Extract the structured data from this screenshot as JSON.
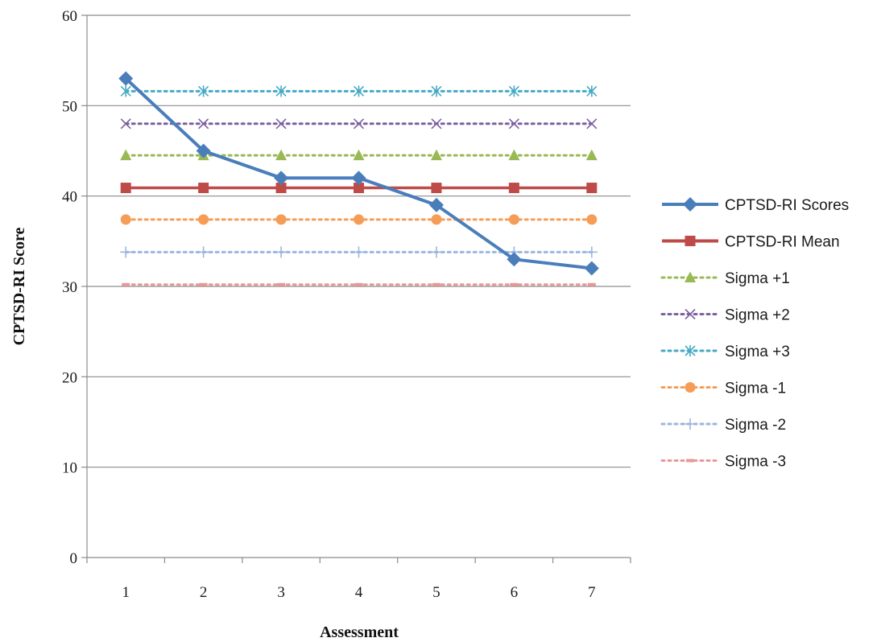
{
  "chart_data": {
    "type": "line",
    "xlabel": "Assessment",
    "ylabel": "CPTSD-RI Score",
    "categories": [
      "1",
      "2",
      "3",
      "4",
      "5",
      "6",
      "7"
    ],
    "ylim": [
      0,
      60
    ],
    "yticks": [
      0,
      10,
      20,
      30,
      40,
      50,
      60
    ],
    "grid": "horizontal",
    "legend": "right",
    "series": [
      {
        "name": "CPTSD-RI Scores",
        "values": [
          53,
          45,
          42,
          42,
          39,
          33,
          32
        ],
        "color": "#4a7ebb",
        "marker": "diamond",
        "dash": "solid"
      },
      {
        "name": "CPTSD-RI Mean",
        "values": [
          40.9,
          40.9,
          40.9,
          40.9,
          40.9,
          40.9,
          40.9
        ],
        "color": "#be4b48",
        "marker": "square",
        "dash": "solid"
      },
      {
        "name": "Sigma +1",
        "values": [
          44.5,
          44.5,
          44.5,
          44.5,
          44.5,
          44.5,
          44.5
        ],
        "color": "#98b954",
        "marker": "triangle",
        "dash": "dotted"
      },
      {
        "name": "Sigma +2",
        "values": [
          48,
          48,
          48,
          48,
          48,
          48,
          48
        ],
        "color": "#7d60a0",
        "marker": "x",
        "dash": "dotted"
      },
      {
        "name": "Sigma +3",
        "values": [
          51.6,
          51.6,
          51.6,
          51.6,
          51.6,
          51.6,
          51.6
        ],
        "color": "#46aac5",
        "marker": "asterisk",
        "dash": "dotted"
      },
      {
        "name": "Sigma -1",
        "values": [
          37.4,
          37.4,
          37.4,
          37.4,
          37.4,
          37.4,
          37.4
        ],
        "color": "#f59d56",
        "marker": "circle",
        "dash": "dotted"
      },
      {
        "name": "Sigma -2",
        "values": [
          33.8,
          33.8,
          33.8,
          33.8,
          33.8,
          33.8,
          33.8
        ],
        "color": "#9cb6e0",
        "marker": "plus",
        "dash": "dotted"
      },
      {
        "name": "Sigma -3",
        "values": [
          30.2,
          30.2,
          30.2,
          30.2,
          30.2,
          30.2,
          30.2
        ],
        "color": "#e69a98",
        "marker": "dash",
        "dash": "dotted"
      }
    ]
  }
}
